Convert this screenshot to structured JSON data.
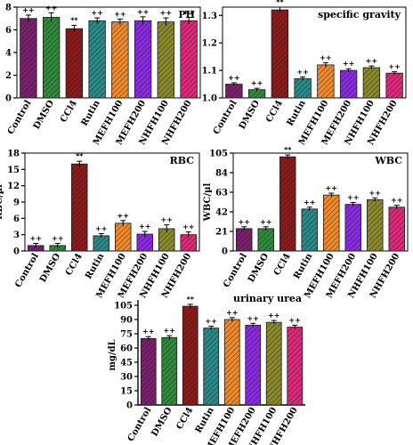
{
  "colors": {
    "Control": "#7b1f6e",
    "DMSO": "#2f8a3a",
    "CCl4": "#8b1a1a",
    "Rutin": "#2a8a8a",
    "MEFH100": "#f08a2a",
    "MEFH200": "#8a2ae0",
    "NHFH100": "#8a8a2a",
    "NHFH200": "#e0287a"
  },
  "chart_data": [
    {
      "id": "ph",
      "type": "bar",
      "title": "PH",
      "xlabel": "",
      "ylabel": "",
      "categories": [
        "Control",
        "DMSO",
        "CCl4",
        "Rutin",
        "MEFH100",
        "MEFH200",
        "NHFH100",
        "NHFH200"
      ],
      "values": [
        7.0,
        7.1,
        6.1,
        6.8,
        6.7,
        6.8,
        6.7,
        6.8
      ],
      "errors": [
        0.3,
        0.4,
        0.3,
        0.25,
        0.25,
        0.35,
        0.35,
        0.3
      ],
      "significance": [
        "++",
        "++",
        "**",
        "++",
        "++",
        "++",
        "++",
        "++"
      ],
      "ylim": [
        0,
        8
      ],
      "yticks": [
        0,
        2,
        4,
        6,
        8
      ]
    },
    {
      "id": "sg",
      "type": "bar",
      "title": "specific gravity",
      "xlabel": "",
      "ylabel": "",
      "categories": [
        "Control",
        "DMSO",
        "CCl4",
        "Rutin",
        "MEFH100",
        "MEFH200",
        "NHFH100",
        "NHFH200"
      ],
      "values": [
        1.05,
        1.03,
        1.32,
        1.07,
        1.12,
        1.1,
        1.11,
        1.09
      ],
      "errors": [
        0.005,
        0.005,
        0.01,
        0.006,
        0.008,
        0.006,
        0.006,
        0.005
      ],
      "significance": [
        "++",
        "++",
        "**",
        "++",
        "++",
        "++",
        "++",
        "++"
      ],
      "ylim": [
        1.0,
        1.33
      ],
      "yticks": [
        1.0,
        1.1,
        1.2,
        1.3
      ],
      "ytick_labels": [
        "1.0",
        "1.1",
        "1.2",
        "1.3"
      ]
    },
    {
      "id": "rbc",
      "type": "bar",
      "title": "RBC",
      "xlabel": "",
      "ylabel": "RBC/µl",
      "categories": [
        "Control",
        "DMSO",
        "CCl4",
        "Rutin",
        "MEFH100",
        "MEFH200",
        "NHFH100",
        "NHFH200"
      ],
      "values": [
        1.0,
        1.0,
        16.0,
        2.8,
        5.1,
        3.1,
        4.1,
        3.0
      ],
      "errors": [
        0.4,
        0.4,
        0.5,
        0.4,
        0.5,
        0.5,
        0.7,
        0.5
      ],
      "significance": [
        "++",
        "++",
        "**",
        "++",
        "++",
        "++",
        "++",
        "++"
      ],
      "ylim": [
        0,
        18
      ],
      "yticks": [
        0,
        3,
        6,
        9,
        12,
        15,
        18
      ]
    },
    {
      "id": "wbc",
      "type": "bar",
      "title": "WBC",
      "xlabel": "",
      "ylabel": "WBC/µl",
      "categories": [
        "Control",
        "DMSO",
        "CCl4",
        "Rutin",
        "MEFH100",
        "MEFH200",
        "NHFH100",
        "NHFH200"
      ],
      "values": [
        24,
        24,
        101,
        45,
        60,
        50,
        55,
        47
      ],
      "errors": [
        2,
        2,
        2,
        2,
        2,
        2,
        2,
        2
      ],
      "significance": [
        "++",
        "++",
        "**",
        "++",
        "++",
        "++",
        "++",
        "++"
      ],
      "ylim": [
        0,
        105
      ],
      "yticks": [
        0,
        21,
        42,
        63,
        84,
        105
      ]
    },
    {
      "id": "urea",
      "type": "bar",
      "title": "urinary urea",
      "xlabel": "",
      "ylabel": "mg/dL",
      "categories": [
        "Control",
        "DMSO",
        "CCl4",
        "Rutin",
        "MEFH100",
        "MEFH200",
        "NHFH100",
        "NHFH200"
      ],
      "values": [
        70,
        71,
        104,
        81,
        90,
        84,
        87,
        82
      ],
      "errors": [
        2,
        2,
        2,
        2,
        2,
        2,
        2,
        2
      ],
      "significance": [
        "++",
        "++",
        "**",
        "++",
        "++",
        "++",
        "++",
        "++"
      ],
      "ylim": [
        0,
        105
      ],
      "yticks": [
        0,
        15,
        30,
        45,
        60,
        75,
        90,
        105
      ]
    }
  ]
}
